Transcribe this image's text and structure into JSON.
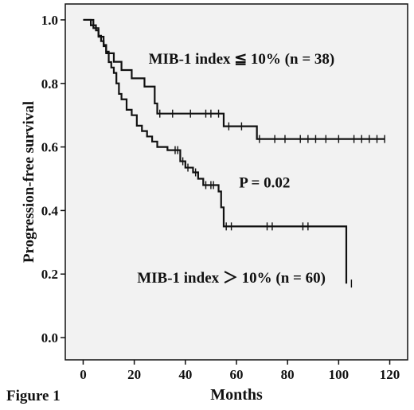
{
  "figure_label": "Figure 1",
  "chart_data": {
    "type": "line",
    "xlabel": "Months",
    "ylabel": "Progression-free survival",
    "xlim": [
      -7,
      127
    ],
    "ylim": [
      -0.07,
      1.05
    ],
    "xticks": [
      0,
      20,
      40,
      60,
      80,
      100,
      120
    ],
    "yticks": [
      0.0,
      0.2,
      0.4,
      0.6,
      0.8,
      1.0
    ],
    "ytick_labels": [
      "0.0",
      "0.2",
      "0.4",
      "0.6",
      "0.8",
      "1.0"
    ],
    "background": "#f2f2f2",
    "line_color": "#111111",
    "annotations": [
      {
        "text": "MIB-1 index ≦ 10% (n = 38)",
        "x": 62,
        "y": 0.88
      },
      {
        "text": "P = 0.02",
        "x": 71,
        "y": 0.49
      },
      {
        "text": "MIB-1 index ＞ 10% (n = 60)",
        "x": 58,
        "y": 0.19
      }
    ],
    "series": [
      {
        "steps": [
          [
            0,
            1.0
          ],
          [
            4,
            0.974
          ],
          [
            6,
            0.947
          ],
          [
            8,
            0.921
          ],
          [
            9,
            0.895
          ],
          [
            12,
            0.868
          ],
          [
            15,
            0.842
          ],
          [
            19,
            0.816
          ],
          [
            24,
            0.79
          ],
          [
            28,
            0.737
          ],
          [
            29,
            0.705
          ],
          [
            55,
            0.665
          ],
          [
            68,
            0.625
          ],
          [
            118,
            0.625
          ]
        ],
        "censored": [
          [
            30,
            0.705
          ],
          [
            35,
            0.705
          ],
          [
            42,
            0.705
          ],
          [
            48,
            0.705
          ],
          [
            50,
            0.705
          ],
          [
            53,
            0.705
          ],
          [
            57,
            0.665
          ],
          [
            62,
            0.665
          ],
          [
            69,
            0.625
          ],
          [
            75,
            0.625
          ],
          [
            79,
            0.625
          ],
          [
            85,
            0.625
          ],
          [
            88,
            0.625
          ],
          [
            91,
            0.625
          ],
          [
            95,
            0.625
          ],
          [
            100,
            0.625
          ],
          [
            106,
            0.625
          ],
          [
            109,
            0.625
          ],
          [
            112,
            0.625
          ],
          [
            115,
            0.625
          ],
          [
            118,
            0.625
          ]
        ]
      },
      {
        "steps": [
          [
            0,
            1.0
          ],
          [
            3,
            0.983
          ],
          [
            5,
            0.967
          ],
          [
            6,
            0.95
          ],
          [
            7,
            0.933
          ],
          [
            8,
            0.917
          ],
          [
            9,
            0.9
          ],
          [
            10,
            0.867
          ],
          [
            11,
            0.85
          ],
          [
            12,
            0.833
          ],
          [
            13,
            0.8
          ],
          [
            14,
            0.767
          ],
          [
            15,
            0.75
          ],
          [
            17,
            0.717
          ],
          [
            19,
            0.7
          ],
          [
            21,
            0.667
          ],
          [
            23,
            0.65
          ],
          [
            25,
            0.633
          ],
          [
            27,
            0.617
          ],
          [
            29,
            0.6
          ],
          [
            33,
            0.59
          ],
          [
            38,
            0.555
          ],
          [
            40,
            0.535
          ],
          [
            43,
            0.52
          ],
          [
            45,
            0.5
          ],
          [
            47,
            0.48
          ],
          [
            53,
            0.46
          ],
          [
            54,
            0.41
          ],
          [
            55,
            0.35
          ],
          [
            103,
            0.17
          ]
        ],
        "censored": [
          [
            36,
            0.59
          ],
          [
            37,
            0.59
          ],
          [
            39,
            0.555
          ],
          [
            41,
            0.535
          ],
          [
            44,
            0.52
          ],
          [
            48,
            0.48
          ],
          [
            50,
            0.48
          ],
          [
            51,
            0.48
          ],
          [
            55,
            0.38
          ],
          [
            56,
            0.35
          ],
          [
            58,
            0.35
          ],
          [
            72,
            0.35
          ],
          [
            74,
            0.35
          ],
          [
            86,
            0.35
          ],
          [
            88,
            0.35
          ],
          [
            105,
            0.17
          ]
        ]
      }
    ]
  }
}
